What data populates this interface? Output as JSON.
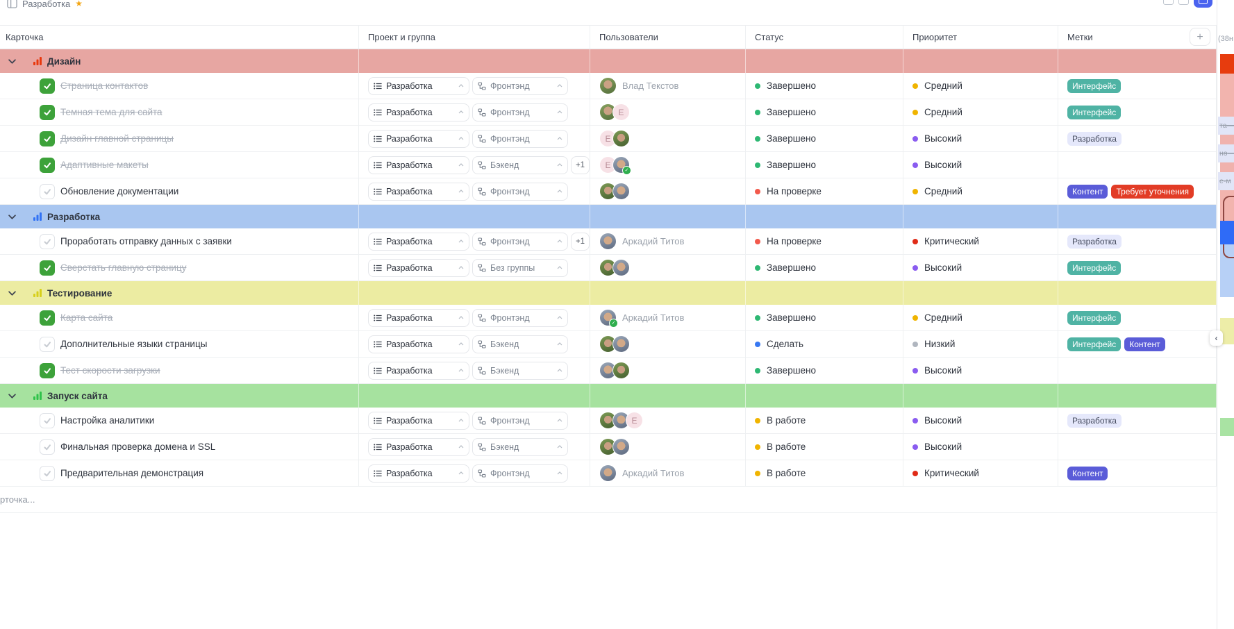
{
  "topbar": {
    "title": "Разработка",
    "favorite": true
  },
  "header": {
    "columns": [
      "Карточка",
      "Проект и группа",
      "Пользователи",
      "Статус",
      "Приоритет",
      "Метки"
    ],
    "add_column_label": "+"
  },
  "status_colors": {
    "Завершено": "#2eb873",
    "На проверке": "#f2594b",
    "Сделать": "#3878f2",
    "В работе": "#f0b400"
  },
  "priority_colors": {
    "Средний": "#f0b400",
    "Высокий": "#8a5cf0",
    "Критический": "#e02b17",
    "Низкий": "#b0b6bf"
  },
  "tag_styles": {
    "Интерфейс": {
      "bg": "#4fb3a4",
      "fg": "#ffffff"
    },
    "Разработка": {
      "bg": "#e5e8fb",
      "fg": "#454b5e"
    },
    "Контент": {
      "bg": "#5a5cd8",
      "fg": "#ffffff"
    },
    "Требует уточнения": {
      "bg": "#e23c26",
      "fg": "#ffffff"
    }
  },
  "groups": [
    {
      "name": "Дизайн",
      "color": "#e7a6a2",
      "icon_color": "#e8380d",
      "tasks": [
        {
          "title": "Страница контактов",
          "done": true,
          "project": "Разработка",
          "group": "Фронтэнд",
          "extra": null,
          "avatars": [
            {
              "variant": "p1"
            }
          ],
          "assignee": "Влад Текстов",
          "status": "Завершено",
          "priority": "Средний",
          "tags": [
            "Интерфейс"
          ]
        },
        {
          "title": "Темная тема для сайта",
          "done": true,
          "project": "Разработка",
          "group": "Фронтэнд",
          "extra": null,
          "avatars": [
            {
              "variant": "p1"
            },
            {
              "variant": "e",
              "letter": "E"
            }
          ],
          "assignee": "",
          "status": "Завершено",
          "priority": "Средний",
          "tags": [
            "Интерфейс"
          ]
        },
        {
          "title": "Дизайн главной страницы",
          "done": true,
          "project": "Разработка",
          "group": "Фронтэнд",
          "extra": null,
          "avatars": [
            {
              "variant": "e",
              "letter": "E"
            },
            {
              "variant": "p2"
            }
          ],
          "assignee": "",
          "status": "Завершено",
          "priority": "Высокий",
          "tags": [
            "Разработка"
          ]
        },
        {
          "title": "Адаптивные макеты",
          "done": true,
          "project": "Разработка",
          "group": "Бэкенд",
          "extra": "+1",
          "avatars": [
            {
              "variant": "e",
              "letter": "E"
            },
            {
              "variant": "p3",
              "badge": true
            }
          ],
          "assignee": "",
          "status": "Завершено",
          "priority": "Высокий",
          "tags": []
        },
        {
          "title": "Обновление документации",
          "done": false,
          "project": "Разработка",
          "group": "Фронтэнд",
          "extra": null,
          "avatars": [
            {
              "variant": "p2"
            },
            {
              "variant": "p3"
            }
          ],
          "assignee": "",
          "status": "На проверке",
          "priority": "Средний",
          "tags": [
            "Контент",
            "Требует уточнения"
          ]
        }
      ]
    },
    {
      "name": "Разработка",
      "color": "#a9c6f0",
      "icon_color": "#3172f5",
      "tasks": [
        {
          "title": "Проработать отправку данных с заявки",
          "done": false,
          "project": "Разработка",
          "group": "Фронтэнд",
          "extra": "+1",
          "avatars": [
            {
              "variant": "p3"
            }
          ],
          "assignee": "Аркадий Титов",
          "status": "На проверке",
          "priority": "Критический",
          "tags": [
            "Разработка"
          ]
        },
        {
          "title": "Сверстать главную страницу",
          "done": true,
          "project": "Разработка",
          "group": "Без группы",
          "extra": null,
          "avatars": [
            {
              "variant": "p2"
            },
            {
              "variant": "p3"
            }
          ],
          "assignee": "",
          "status": "Завершено",
          "priority": "Высокий",
          "tags": [
            "Интерфейс"
          ]
        }
      ]
    },
    {
      "name": "Тестирование",
      "color": "#ececa2",
      "icon_color": "#d7cf1b",
      "tasks": [
        {
          "title": "Карта сайта",
          "done": true,
          "project": "Разработка",
          "group": "Фронтэнд",
          "extra": null,
          "avatars": [
            {
              "variant": "p3",
              "badge": true
            }
          ],
          "assignee": "Аркадий Титов",
          "status": "Завершено",
          "priority": "Средний",
          "tags": [
            "Интерфейс"
          ]
        },
        {
          "title": "Дополнительные языки страницы",
          "done": false,
          "project": "Разработка",
          "group": "Бэкенд",
          "extra": null,
          "avatars": [
            {
              "variant": "p2"
            },
            {
              "variant": "p3"
            }
          ],
          "assignee": "",
          "status": "Сделать",
          "priority": "Низкий",
          "tags": [
            "Интерфейс",
            "Контент"
          ]
        },
        {
          "title": "Тест скорости загрузки",
          "done": true,
          "project": "Разработка",
          "group": "Бэкенд",
          "extra": null,
          "avatars": [
            {
              "variant": "p3"
            },
            {
              "variant": "p2"
            }
          ],
          "assignee": "",
          "status": "Завершено",
          "priority": "Высокий",
          "tags": []
        }
      ]
    },
    {
      "name": "Запуск сайта",
      "color": "#a6e29f",
      "icon_color": "#2fc24a",
      "tasks": [
        {
          "title": "Настройка аналитики",
          "done": false,
          "project": "Разработка",
          "group": "Фронтэнд",
          "extra": null,
          "avatars": [
            {
              "variant": "p2"
            },
            {
              "variant": "p3"
            },
            {
              "variant": "e",
              "letter": "E"
            }
          ],
          "assignee": "",
          "status": "В работе",
          "priority": "Высокий",
          "tags": [
            "Разработка"
          ]
        },
        {
          "title": "Финальная проверка домена и SSL",
          "done": false,
          "project": "Разработка",
          "group": "Бэкенд",
          "extra": null,
          "avatars": [
            {
              "variant": "p2"
            },
            {
              "variant": "p3"
            }
          ],
          "assignee": "",
          "status": "В работе",
          "priority": "Высокий",
          "tags": []
        },
        {
          "title": "Предварительная демонстрация",
          "done": false,
          "project": "Разработка",
          "group": "Фронтэнд",
          "extra": null,
          "avatars": [
            {
              "variant": "p3"
            }
          ],
          "assignee": "Аркадий Титов",
          "status": "В работе",
          "priority": "Критический",
          "tags": [
            "Контент"
          ]
        }
      ]
    }
  ],
  "footer": {
    "add_card": "рточка..."
  },
  "timeline": {
    "week_label": "(38н",
    "fragments": [
      "та—",
      "нө—",
      "е-м"
    ]
  }
}
